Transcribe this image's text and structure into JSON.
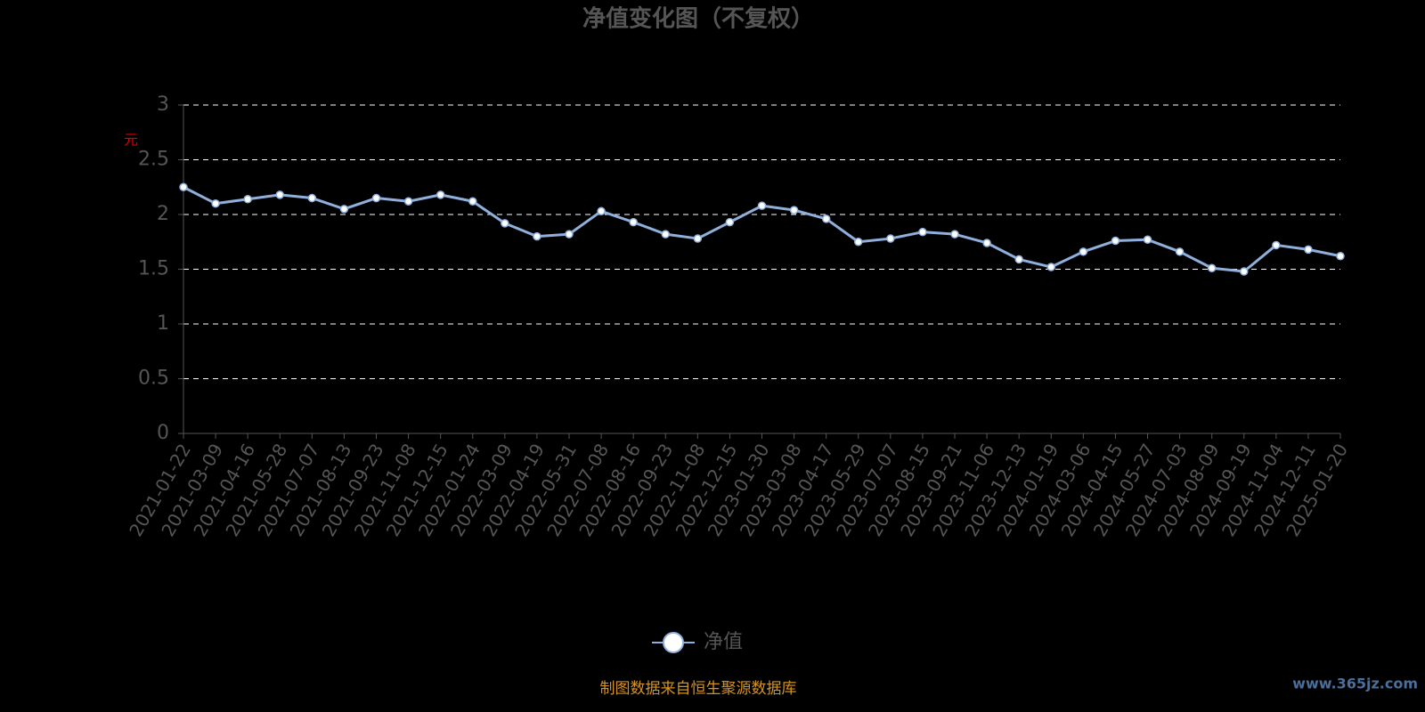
{
  "chart_data": {
    "type": "line",
    "title": "净值变化图（不复权）",
    "y_label": "元",
    "categories": [
      "2021-01-22",
      "2021-03-09",
      "2021-04-16",
      "2021-05-28",
      "2021-07-07",
      "2021-08-13",
      "2021-09-23",
      "2021-11-08",
      "2021-12-15",
      "2022-01-24",
      "2022-03-09",
      "2022-04-19",
      "2022-05-31",
      "2022-07-08",
      "2022-08-16",
      "2022-09-23",
      "2022-11-08",
      "2022-12-15",
      "2023-01-30",
      "2023-03-08",
      "2023-04-17",
      "2023-05-29",
      "2023-07-07",
      "2023-08-15",
      "2023-09-21",
      "2023-11-06",
      "2023-12-13",
      "2024-01-19",
      "2024-03-06",
      "2024-04-15",
      "2024-05-27",
      "2024-07-03",
      "2024-08-09",
      "2024-09-19",
      "2024-11-04",
      "2024-12-11",
      "2025-01-20"
    ],
    "series": [
      {
        "name": "净值",
        "color": "#8fb0dc",
        "values": [
          2.25,
          2.1,
          2.14,
          2.18,
          2.15,
          2.05,
          2.15,
          2.12,
          2.18,
          2.12,
          1.92,
          1.8,
          1.82,
          2.03,
          1.93,
          1.82,
          1.78,
          1.93,
          2.08,
          2.04,
          1.96,
          1.75,
          1.78,
          1.84,
          1.82,
          1.74,
          1.59,
          1.52,
          1.66,
          1.76,
          1.77,
          1.66,
          1.51,
          1.48,
          1.72,
          1.68,
          1.62
        ]
      }
    ],
    "ylim": [
      0,
      3
    ],
    "yticks": [
      0,
      0.5,
      1,
      1.5,
      2,
      2.5,
      3
    ],
    "grid": true,
    "legend": "bottom",
    "footer": "制图数据来自恒生聚源数据库",
    "watermark": "www.365jz.com"
  }
}
